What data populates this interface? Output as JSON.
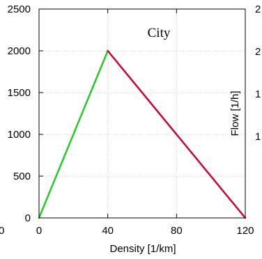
{
  "chart_data": {
    "type": "line",
    "title": "City",
    "xlabel": "Density [1/km]",
    "ylabel": "Flow [1/h]",
    "xlim": [
      0,
      120
    ],
    "ylim": [
      0,
      2500
    ],
    "xticks": [
      0,
      40,
      80,
      120
    ],
    "yticks": [
      0,
      500,
      1000,
      1500,
      2000,
      2500
    ],
    "grid": true,
    "series": [
      {
        "x": [
          0,
          40
        ],
        "y": [
          0,
          2000
        ],
        "color": "#22cc22"
      },
      {
        "x": [
          40,
          120
        ],
        "y": [
          2000,
          0
        ],
        "color": "#cc0033"
      }
    ],
    "cropped_left_text": "0",
    "cropped_right_ticks": [
      "2",
      "2",
      "1",
      "1"
    ]
  }
}
